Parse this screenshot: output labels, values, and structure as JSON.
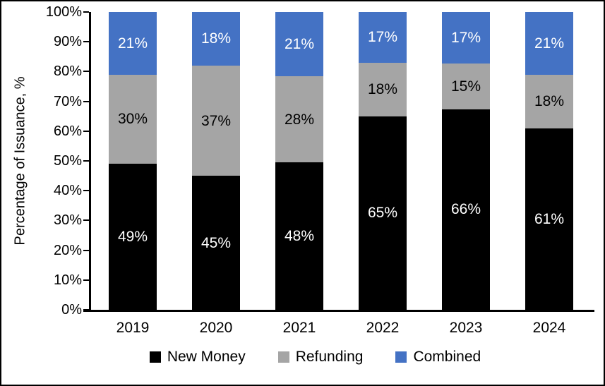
{
  "chart_data": {
    "type": "bar",
    "stacked": true,
    "title": "",
    "categories": [
      "2019",
      "2020",
      "2021",
      "2022",
      "2023",
      "2024"
    ],
    "series": [
      {
        "name": "New Money",
        "color": "#000000",
        "label_color": "#FFFFFF",
        "values": [
          49,
          45,
          48,
          65,
          66,
          61
        ],
        "labels": [
          "49%",
          "45%",
          "48%",
          "65%",
          "66%",
          "61%"
        ]
      },
      {
        "name": "Refunding",
        "color": "#A5A5A5",
        "label_color": "#000000",
        "values": [
          30,
          37,
          28,
          18,
          15,
          18
        ],
        "labels": [
          "30%",
          "37%",
          "28%",
          "18%",
          "15%",
          "18%"
        ]
      },
      {
        "name": "Combined",
        "color": "#4472C4",
        "label_color": "#FFFFFF",
        "values": [
          21,
          18,
          21,
          17,
          17,
          21
        ],
        "labels": [
          "21%",
          "18%",
          "21%",
          "17%",
          "17%",
          "21%"
        ]
      }
    ],
    "ylabel": "Percentage of Issuance, %",
    "ylim": [
      0,
      100
    ],
    "ytick_labels": [
      "0%",
      "10%",
      "20%",
      "30%",
      "40%",
      "50%",
      "60%",
      "70%",
      "80%",
      "90%",
      "100%"
    ],
    "legend_position": "bottom",
    "grid": false,
    "axis_color": "#000000"
  }
}
